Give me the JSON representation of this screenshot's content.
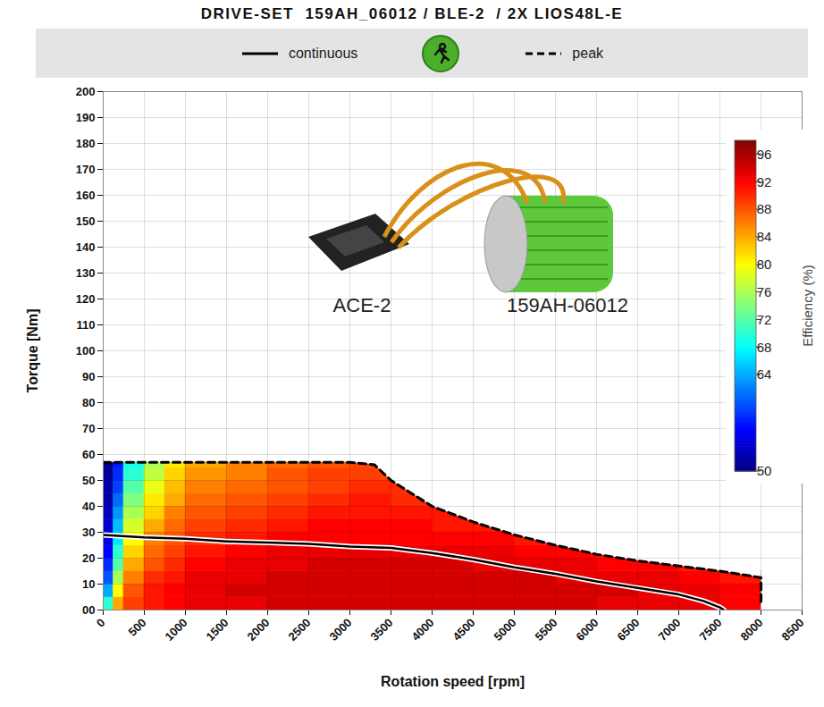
{
  "chart_data": {
    "type": "line",
    "title": "DRIVE-SET  159AH_06012 / BLE-2  / 2X LIOS48L-E",
    "x_label": "Rotation speed [rpm]",
    "y_label": "Torque [Nm]",
    "xlim": [
      0,
      8500
    ],
    "xticks": [
      0,
      500,
      1000,
      1500,
      2000,
      2500,
      3000,
      3500,
      4000,
      4500,
      5000,
      5500,
      6000,
      6500,
      7000,
      7500,
      8000,
      8500
    ],
    "ylim": [
      0,
      200
    ],
    "yticks": [
      {
        "value": 0,
        "label": "00"
      },
      10,
      20,
      30,
      40,
      50,
      60,
      70,
      80,
      90,
      100,
      110,
      120,
      130,
      140,
      150,
      160,
      170,
      180,
      190,
      200
    ],
    "grid": true,
    "legend": "top",
    "series": [
      {
        "name": "continuous",
        "color": "#000000",
        "line_style": "solid",
        "x": [
          0,
          500,
          1000,
          1500,
          2000,
          2500,
          3000,
          3500,
          4000,
          4500,
          5000,
          5500,
          6000,
          6500,
          7000,
          7300,
          7500,
          7550
        ],
        "values": [
          29,
          28,
          27.5,
          26.5,
          26,
          25.5,
          24.5,
          24,
          22,
          19.5,
          16.5,
          14,
          11,
          8.5,
          6,
          3.5,
          1,
          0
        ]
      },
      {
        "name": "peak",
        "color": "#000000",
        "line_style": "dashed",
        "x": [
          0,
          500,
          1000,
          1500,
          2000,
          2500,
          3000,
          3300,
          3500,
          4000,
          4500,
          5000,
          5500,
          6000,
          6500,
          7000,
          7500,
          8000,
          8000
        ],
        "values": [
          57,
          57,
          57,
          57,
          57,
          57,
          57,
          56,
          50,
          40,
          34,
          29,
          25,
          21.5,
          19,
          17,
          15,
          12.5,
          3
        ]
      }
    ],
    "efficiency": {
      "x_edges": [
        0,
        125,
        250,
        500,
        750,
        1000,
        1500,
        2000,
        2500,
        3000,
        3500,
        4000,
        4500,
        5000,
        5500,
        6000,
        6500,
        7000,
        7500,
        8000
      ],
      "y_edges": [
        0,
        5,
        10,
        15,
        20,
        25,
        30,
        35,
        40,
        45,
        50,
        55,
        60
      ],
      "values": [
        [
          70,
          84,
          89,
          91,
          92,
          93,
          93,
          94,
          94,
          94,
          94,
          94,
          94,
          94,
          94,
          93,
          93,
          93,
          92
        ],
        [
          64,
          80,
          88,
          91,
          92,
          93,
          94,
          94,
          94,
          94,
          94,
          94,
          94,
          94,
          94,
          94,
          93,
          93,
          92
        ],
        [
          60,
          76,
          86,
          90,
          91,
          93,
          93,
          94,
          94,
          94,
          94,
          94,
          94,
          94,
          93,
          93,
          93,
          92,
          91
        ],
        [
          58,
          72,
          84,
          88,
          90,
          92,
          93,
          93,
          94,
          94,
          94,
          94,
          93,
          93,
          93,
          92,
          92,
          91,
          null
        ],
        [
          56,
          70,
          82,
          87,
          89,
          91,
          92,
          93,
          93,
          93,
          93,
          93,
          93,
          92,
          92,
          91,
          null,
          null,
          null
        ],
        [
          55,
          67,
          80,
          86,
          88,
          90,
          91,
          92,
          92,
          92,
          92,
          92,
          92,
          91,
          null,
          null,
          null,
          null,
          null
        ],
        [
          54,
          65,
          78,
          84,
          87,
          89,
          90,
          91,
          92,
          92,
          92,
          91,
          91,
          null,
          null,
          null,
          null,
          null,
          null
        ],
        [
          53,
          63,
          76,
          82,
          86,
          88,
          89,
          90,
          91,
          91,
          91,
          91,
          null,
          null,
          null,
          null,
          null,
          null,
          null
        ],
        [
          52,
          61,
          74,
          81,
          84,
          87,
          88,
          89,
          90,
          91,
          90,
          null,
          null,
          null,
          null,
          null,
          null,
          null,
          null
        ],
        [
          52,
          59,
          72,
          79,
          83,
          86,
          87,
          88,
          89,
          90,
          90,
          null,
          null,
          null,
          null,
          null,
          null,
          null,
          null
        ],
        [
          51,
          58,
          70,
          77,
          82,
          85,
          86,
          88,
          89,
          89,
          null,
          null,
          null,
          null,
          null,
          null,
          null,
          null,
          null
        ],
        [
          50,
          57,
          69,
          76,
          81,
          84,
          86,
          87,
          88,
          89,
          null,
          null,
          null,
          null,
          null,
          null,
          null,
          null,
          null
        ]
      ]
    },
    "colorbar": {
      "label": "Efficiency (%)",
      "range": [
        50,
        98
      ],
      "ticks": [
        50,
        64,
        68,
        72,
        76,
        80,
        84,
        88,
        92,
        96
      ]
    },
    "annotations": [
      {
        "text": "ACE-2"
      },
      {
        "text": "159AH-06012"
      }
    ]
  }
}
